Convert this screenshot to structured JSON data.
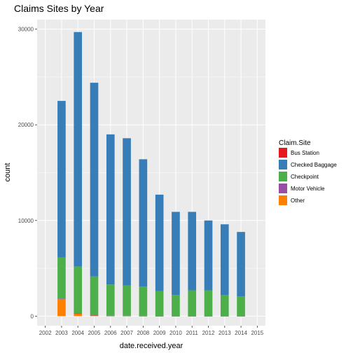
{
  "chart_data": {
    "type": "bar",
    "stacked": true,
    "title": "Claims Sites by Year",
    "xlabel": "date.received.year",
    "ylabel": "count",
    "categories": [
      "2002",
      "2003",
      "2004",
      "2005",
      "2006",
      "2007",
      "2008",
      "2009",
      "2010",
      "2011",
      "2012",
      "2013",
      "2014",
      "2015"
    ],
    "yticks": [
      0,
      10000,
      20000,
      30000
    ],
    "ylim": [
      -1000,
      31000
    ],
    "grid": true,
    "legend": {
      "title": "Claim.Site",
      "position": "right"
    },
    "series": [
      {
        "name": "Other",
        "color": "#ff7f00",
        "values": [
          0,
          1800,
          250,
          80,
          30,
          30,
          20,
          10,
          10,
          10,
          10,
          10,
          10,
          0
        ]
      },
      {
        "name": "Motor Vehicle",
        "color": "#984ea3",
        "values": [
          0,
          30,
          30,
          20,
          20,
          20,
          10,
          10,
          10,
          10,
          10,
          10,
          10,
          0
        ]
      },
      {
        "name": "Checkpoint",
        "color": "#4daf4a",
        "values": [
          0,
          4300,
          4900,
          4050,
          3250,
          3150,
          3050,
          2580,
          2180,
          2680,
          2680,
          2200,
          2050,
          0
        ]
      },
      {
        "name": "Checked Baggage",
        "color": "#377eb8",
        "values": [
          0,
          16370,
          24520,
          20250,
          15700,
          15400,
          13320,
          10100,
          8700,
          8200,
          7300,
          7380,
          6730,
          0
        ]
      },
      {
        "name": "Bus Station",
        "color": "#e41a1c",
        "values": [
          0,
          0,
          0,
          0,
          0,
          0,
          0,
          0,
          0,
          0,
          0,
          0,
          0,
          0
        ]
      }
    ],
    "legend_order": [
      "Bus Station",
      "Checked Baggage",
      "Checkpoint",
      "Motor Vehicle",
      "Other"
    ]
  }
}
